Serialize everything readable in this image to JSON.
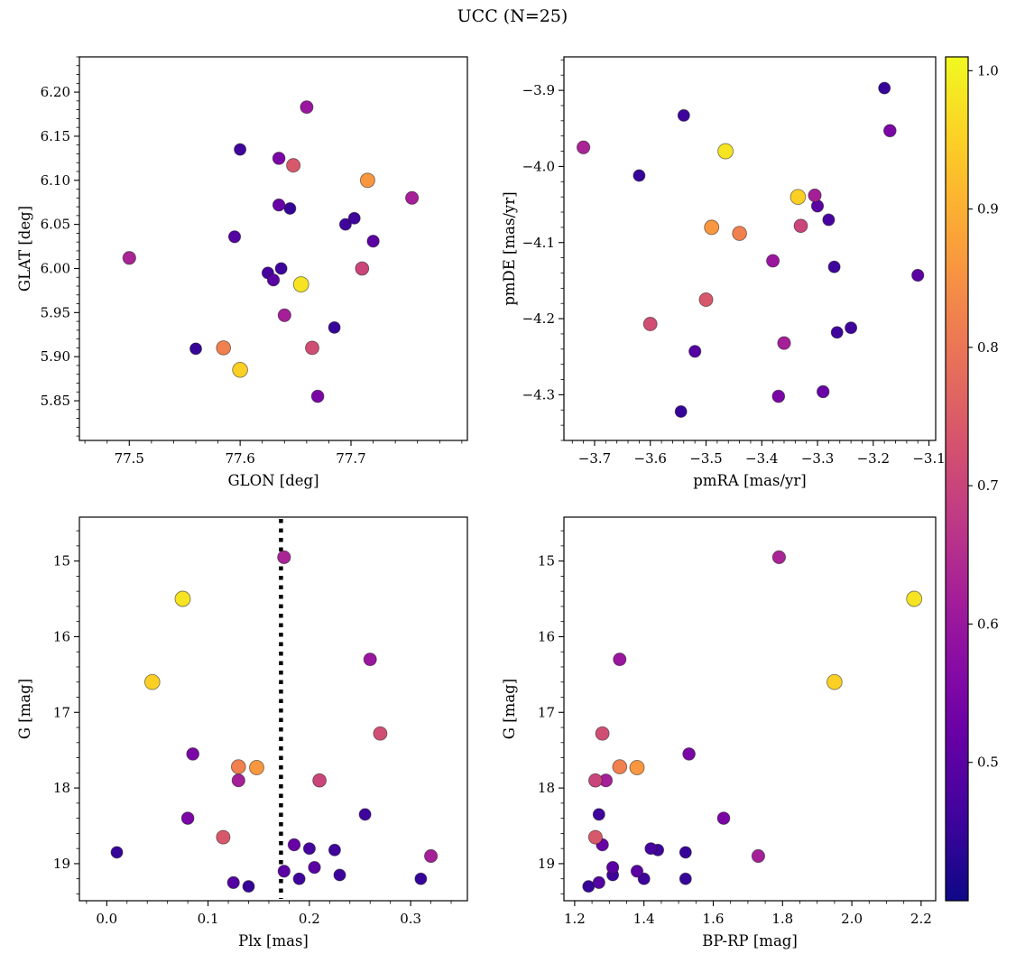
{
  "chart_data": {
    "type": "scatter",
    "title": "UCC (N=25)",
    "colormap": "plasma",
    "color_field": "p",
    "colorbar": {
      "vmin": 0.4,
      "vmax": 1.01,
      "ticks": [
        0.5,
        0.6,
        0.7,
        0.8,
        0.9,
        1.0
      ],
      "tick_decimals": 1
    },
    "marker": {
      "r_min": 6.3,
      "r_max": 8.6,
      "edge_color": "rgba(30,30,30,0.55)",
      "edge_width": 0.9
    },
    "panels": [
      {
        "id": "position",
        "xlabel": "GLON [deg]",
        "ylabel": "GLAT [deg]",
        "xkey": "glon",
        "ykey": "glat",
        "x_range": [
          77.455,
          77.805
        ],
        "y_range": [
          6.24,
          5.805
        ],
        "xticks": [
          77.5,
          77.6,
          77.7
        ],
        "yticks": [
          5.85,
          5.9,
          5.95,
          6.0,
          6.05,
          6.1,
          6.15,
          6.2
        ],
        "x_dec": 1,
        "y_dec": 2,
        "x_minor": 0.02,
        "y_minor": 0.01
      },
      {
        "id": "proper-motion",
        "xlabel": "pmRA [mas/yr]",
        "ylabel": "pmDE [mas/yr]",
        "xkey": "pmra",
        "ykey": "pmde",
        "x_range": [
          -3.755,
          -3.088
        ],
        "y_range": [
          -3.856,
          -4.36
        ],
        "xticks": [
          -3.7,
          -3.6,
          -3.5,
          -3.4,
          -3.3,
          -3.2,
          -3.1
        ],
        "yticks": [
          -3.9,
          -4.0,
          -4.1,
          -4.2,
          -4.3
        ],
        "x_dec": 1,
        "y_dec": 1,
        "x_minor": 0.02,
        "y_minor": 0.02
      },
      {
        "id": "parallax",
        "xlabel": "Plx [mas]",
        "ylabel": "G [mag]",
        "xkey": "plx",
        "ykey": "g",
        "x_range": [
          -0.027,
          0.356
        ],
        "y_range": [
          14.42,
          19.49
        ],
        "xticks": [
          0.0,
          0.1,
          0.2,
          0.3
        ],
        "yticks": [
          15,
          16,
          17,
          18,
          19
        ],
        "x_dec": 1,
        "y_dec": 0,
        "x_minor": 0.02,
        "y_minor": 0.2,
        "vline": {
          "x": 0.172,
          "color": "#000000",
          "style": "dotted",
          "width": 4.5
        }
      },
      {
        "id": "cmd",
        "xlabel": "BP-RP [mag]",
        "ylabel": "G [mag]",
        "xkey": "bprp",
        "ykey": "g",
        "x_range": [
          1.169,
          2.242
        ],
        "y_range": [
          14.42,
          19.49
        ],
        "xticks": [
          1.2,
          1.4,
          1.6,
          1.8,
          2.0,
          2.2
        ],
        "yticks": [
          15,
          16,
          17,
          18,
          19
        ],
        "x_dec": 1,
        "y_dec": 0,
        "x_minor": 0.05,
        "y_minor": 0.2
      }
    ],
    "stars": [
      {
        "glon": 77.5,
        "glat": 6.012,
        "pmra": -3.72,
        "pmde": -3.975,
        "plx": 0.175,
        "g": 14.95,
        "bprp": 1.79,
        "p": 0.63
      },
      {
        "glon": 77.655,
        "glat": 5.982,
        "pmra": -3.465,
        "pmde": -3.98,
        "plx": 0.075,
        "g": 15.5,
        "bprp": 2.18,
        "p": 0.98
      },
      {
        "glon": 77.6,
        "glat": 5.885,
        "pmra": -3.335,
        "pmde": -4.04,
        "plx": 0.045,
        "g": 16.6,
        "bprp": 1.95,
        "p": 0.95
      },
      {
        "glon": 77.66,
        "glat": 6.183,
        "pmra": -3.38,
        "pmde": -4.124,
        "plx": 0.26,
        "g": 16.3,
        "bprp": 1.33,
        "p": 0.6
      },
      {
        "glon": 77.665,
        "glat": 5.91,
        "pmra": -3.6,
        "pmde": -4.207,
        "plx": 0.27,
        "g": 17.28,
        "bprp": 1.28,
        "p": 0.72
      },
      {
        "glon": 77.635,
        "glat": 6.125,
        "pmra": -3.17,
        "pmde": -3.953,
        "plx": 0.085,
        "g": 17.55,
        "bprp": 1.53,
        "p": 0.55
      },
      {
        "glon": 77.585,
        "glat": 5.91,
        "pmra": -3.44,
        "pmde": -4.088,
        "plx": 0.13,
        "g": 17.72,
        "bprp": 1.33,
        "p": 0.82
      },
      {
        "glon": 77.715,
        "glat": 6.1,
        "pmra": -3.49,
        "pmde": -4.08,
        "plx": 0.148,
        "g": 17.73,
        "bprp": 1.38,
        "p": 0.86
      },
      {
        "glon": 77.64,
        "glat": 5.947,
        "pmra": -3.305,
        "pmde": -4.038,
        "plx": 0.13,
        "g": 17.9,
        "bprp": 1.29,
        "p": 0.62
      },
      {
        "glon": 77.71,
        "glat": 6.0,
        "pmra": -3.33,
        "pmde": -4.078,
        "plx": 0.21,
        "g": 17.9,
        "bprp": 1.26,
        "p": 0.7
      },
      {
        "glon": 77.67,
        "glat": 5.855,
        "pmra": -3.37,
        "pmde": -4.302,
        "plx": 0.08,
        "g": 18.4,
        "bprp": 1.63,
        "p": 0.55
      },
      {
        "glon": 77.6,
        "glat": 6.135,
        "pmra": -3.54,
        "pmde": -3.933,
        "plx": 0.255,
        "g": 18.35,
        "bprp": 1.27,
        "p": 0.46
      },
      {
        "glon": 77.648,
        "glat": 6.117,
        "pmra": -3.5,
        "pmde": -4.175,
        "plx": 0.115,
        "g": 18.65,
        "bprp": 1.26,
        "p": 0.74
      },
      {
        "glon": 77.635,
        "glat": 6.072,
        "pmra": -3.29,
        "pmde": -4.296,
        "plx": 0.185,
        "g": 18.75,
        "bprp": 1.28,
        "p": 0.52
      },
      {
        "glon": 77.625,
        "glat": 5.995,
        "pmra": -3.28,
        "pmde": -4.07,
        "plx": 0.2,
        "g": 18.8,
        "bprp": 1.42,
        "p": 0.47
      },
      {
        "glon": 77.695,
        "glat": 6.05,
        "pmra": -3.27,
        "pmde": -4.132,
        "plx": 0.225,
        "g": 18.82,
        "bprp": 1.44,
        "p": 0.46
      },
      {
        "glon": 77.56,
        "glat": 5.909,
        "pmra": -3.62,
        "pmde": -4.012,
        "plx": 0.01,
        "g": 18.85,
        "bprp": 1.52,
        "p": 0.45
      },
      {
        "glon": 77.755,
        "glat": 6.08,
        "pmra": -3.36,
        "pmde": -4.232,
        "plx": 0.32,
        "g": 18.9,
        "bprp": 1.73,
        "p": 0.62
      },
      {
        "glon": 77.63,
        "glat": 5.987,
        "pmra": -3.3,
        "pmde": -4.052,
        "plx": 0.175,
        "g": 19.1,
        "bprp": 1.38,
        "p": 0.5
      },
      {
        "glon": 77.637,
        "glat": 6.0,
        "pmra": -3.265,
        "pmde": -4.218,
        "plx": 0.19,
        "g": 19.2,
        "bprp": 1.4,
        "p": 0.46
      },
      {
        "glon": 77.703,
        "glat": 6.057,
        "pmra": -3.24,
        "pmde": -4.212,
        "plx": 0.23,
        "g": 19.15,
        "bprp": 1.31,
        "p": 0.46
      },
      {
        "glon": 77.595,
        "glat": 6.036,
        "pmra": -3.52,
        "pmde": -4.243,
        "plx": 0.125,
        "g": 19.25,
        "bprp": 1.27,
        "p": 0.49
      },
      {
        "glon": 77.645,
        "glat": 6.068,
        "pmra": -3.545,
        "pmde": -4.322,
        "plx": 0.14,
        "g": 19.3,
        "bprp": 1.24,
        "p": 0.45
      },
      {
        "glon": 77.685,
        "glat": 5.933,
        "pmra": -3.18,
        "pmde": -3.897,
        "plx": 0.31,
        "g": 19.2,
        "bprp": 1.52,
        "p": 0.45
      },
      {
        "glon": 77.72,
        "glat": 6.031,
        "pmra": -3.12,
        "pmde": -4.143,
        "plx": 0.205,
        "g": 19.05,
        "bprp": 1.31,
        "p": 0.5
      }
    ]
  }
}
